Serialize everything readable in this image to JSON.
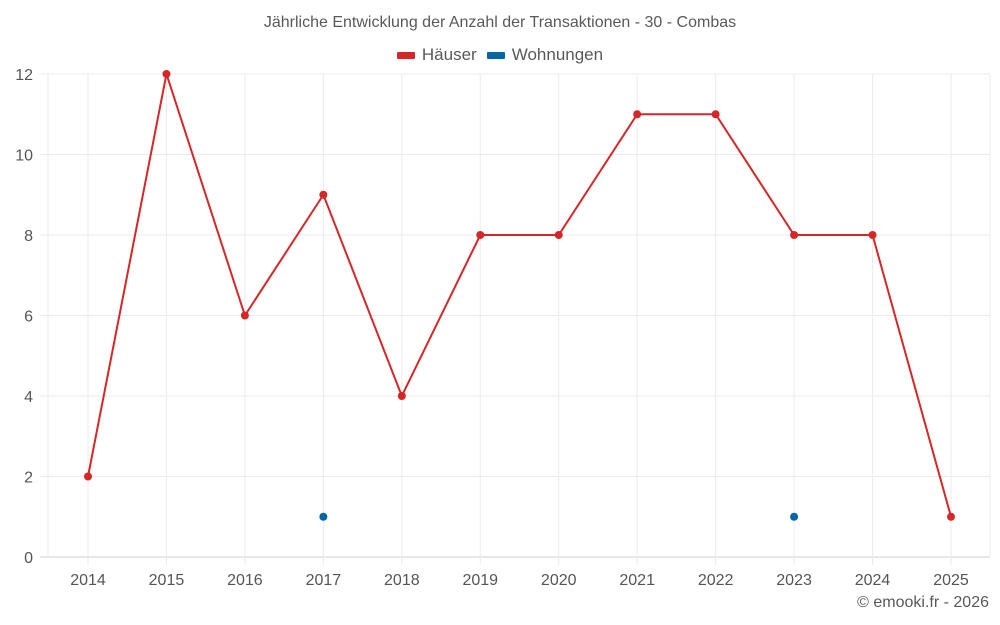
{
  "title": "Jährliche Entwicklung der Anzahl der Transaktionen - 30 - Combas",
  "legend": [
    {
      "label": "Häuser",
      "color": "#d62728"
    },
    {
      "label": "Wohnungen",
      "color": "#0466a6"
    }
  ],
  "credit": "© emooki.fr - 2026",
  "chart_data": {
    "type": "line",
    "title": "Jährliche Entwicklung der Anzahl der Transaktionen - 30 - Combas",
    "xlabel": "",
    "ylabel": "",
    "categories": [
      "2014",
      "2015",
      "2016",
      "2017",
      "2018",
      "2019",
      "2020",
      "2021",
      "2022",
      "2023",
      "2024",
      "2025"
    ],
    "yticks": [
      0,
      2,
      4,
      6,
      8,
      10,
      12
    ],
    "ylim": [
      0,
      12
    ],
    "grid": true,
    "legend_position": "top",
    "series": [
      {
        "name": "Häuser",
        "color": "#d62728",
        "values": [
          2,
          12,
          6,
          9,
          4,
          8,
          8,
          11,
          11,
          8,
          8,
          1
        ]
      },
      {
        "name": "Wohnungen",
        "color": "#0466a6",
        "values": [
          null,
          null,
          null,
          1,
          null,
          null,
          null,
          null,
          null,
          1,
          null,
          null
        ]
      }
    ]
  }
}
